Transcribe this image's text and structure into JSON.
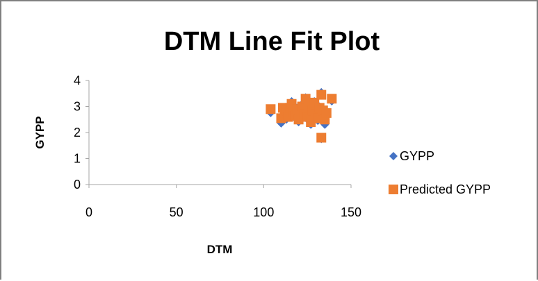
{
  "chart_data": {
    "type": "scatter",
    "title": "DTM Line Fit  Plot",
    "xlabel": "DTM",
    "ylabel": "GYPP",
    "xlim": [
      0,
      150
    ],
    "ylim": [
      0,
      4
    ],
    "x_ticks": [
      "0",
      "50",
      "100",
      "150"
    ],
    "y_ticks": [
      "0",
      "1",
      "2",
      "3",
      "4"
    ],
    "grid": false,
    "legend_position": "right",
    "series": [
      {
        "name": "GYPP",
        "color": "#4472c4",
        "marker": "diamond",
        "points": [
          [
            104,
            2.75
          ],
          [
            110,
            2.35
          ],
          [
            111,
            2.6
          ],
          [
            112,
            2.9
          ],
          [
            113,
            2.5
          ],
          [
            114,
            2.8
          ],
          [
            115,
            3.05
          ],
          [
            116,
            3.2
          ],
          [
            117,
            2.7
          ],
          [
            118,
            2.55
          ],
          [
            119,
            2.95
          ],
          [
            120,
            2.4
          ],
          [
            121,
            2.85
          ],
          [
            122,
            3.1
          ],
          [
            123,
            2.65
          ],
          [
            124,
            3.35
          ],
          [
            125,
            2.5
          ],
          [
            126,
            3.0
          ],
          [
            127,
            2.3
          ],
          [
            128,
            2.9
          ],
          [
            129,
            3.2
          ],
          [
            130,
            2.6
          ],
          [
            131,
            2.45
          ],
          [
            132,
            3.0
          ],
          [
            133,
            3.55
          ],
          [
            133,
            1.75
          ],
          [
            134,
            2.8
          ],
          [
            135,
            2.3
          ],
          [
            136,
            2.7
          ],
          [
            139,
            3.2
          ]
        ]
      },
      {
        "name": "Predicted GYPP",
        "color": "#ed7d31",
        "marker": "square",
        "points": [
          [
            104,
            2.9
          ],
          [
            110,
            2.55
          ],
          [
            111,
            2.95
          ],
          [
            112,
            2.75
          ],
          [
            113,
            2.85
          ],
          [
            114,
            2.6
          ],
          [
            115,
            2.95
          ],
          [
            116,
            3.1
          ],
          [
            117,
            2.8
          ],
          [
            118,
            2.65
          ],
          [
            119,
            2.9
          ],
          [
            120,
            2.5
          ],
          [
            121,
            2.8
          ],
          [
            122,
            3.0
          ],
          [
            123,
            2.7
          ],
          [
            124,
            3.3
          ],
          [
            125,
            2.6
          ],
          [
            126,
            2.95
          ],
          [
            127,
            2.4
          ],
          [
            128,
            2.85
          ],
          [
            129,
            3.15
          ],
          [
            130,
            2.7
          ],
          [
            131,
            2.55
          ],
          [
            132,
            2.95
          ],
          [
            133,
            3.45
          ],
          [
            133,
            1.8
          ],
          [
            134,
            2.85
          ],
          [
            135,
            2.5
          ],
          [
            136,
            2.75
          ],
          [
            139,
            3.3
          ]
        ]
      }
    ]
  }
}
